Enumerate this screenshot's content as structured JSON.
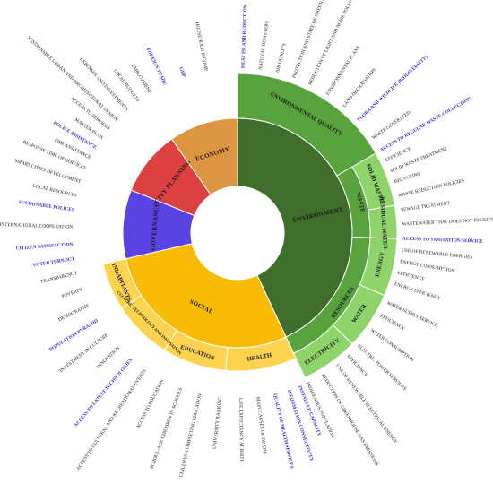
{
  "colors": {
    "environment_core": "#3f6d2c",
    "environment_mid": "#58a33d",
    "environment_outer": "#8fd46a",
    "social_core": "#f8bc06",
    "social_outer": "#fdd34f",
    "governance": "#5a42e3",
    "city_planning": "#dd4040",
    "economy": "#dc9540",
    "stroke": "#ffffff",
    "highlight_text": "#3d2bc9",
    "text": "#222222"
  },
  "rings": [
    {
      "id": "environment",
      "label": "ENVIRONMENT",
      "start": 0,
      "end": 155,
      "color": "#3f6d2c"
    },
    {
      "id": "social",
      "label": "SOCIAL",
      "start": 155,
      "end": 257,
      "color": "#f8bc06"
    },
    {
      "id": "governance",
      "label": "GOVERNANCE",
      "start": 257,
      "end": 292,
      "color": "#5a42e3"
    },
    {
      "id": "city_planning",
      "label": "CITY PLANNING",
      "start": 292,
      "end": 325,
      "color": "#dd4040"
    },
    {
      "id": "economy",
      "label": "ECONOMY",
      "start": 325,
      "end": 360,
      "color": "#dc9540"
    }
  ],
  "categories": [
    {
      "id": "environmental_quality",
      "label": "ENVIRONMENTAL QUALITY",
      "parent": "environment",
      "start": 0,
      "end": 60,
      "ring": "mid",
      "color": "#58a33d"
    },
    {
      "id": "waste",
      "label": "WASTE",
      "parent": "environment",
      "start": 60,
      "end": 92,
      "ring": "mid",
      "color": "#58a33d"
    },
    {
      "id": "resources",
      "label": "RESOURCES",
      "parent": "environment",
      "start": 92,
      "end": 155,
      "ring": "mid",
      "color": "#58a33d"
    },
    {
      "id": "solid_waste",
      "label": "SOLID WASTE",
      "parent": "waste",
      "start": 60,
      "end": 80,
      "ring": "outer",
      "color": "#8fd46a"
    },
    {
      "id": "residual_water",
      "label": "RESIDUAL WATER",
      "parent": "waste",
      "start": 80,
      "end": 92,
      "ring": "outer",
      "color": "#8fd46a"
    },
    {
      "id": "energy",
      "label": "ENERGY",
      "parent": "resources",
      "start": 92,
      "end": 113,
      "ring": "outer",
      "color": "#8fd46a"
    },
    {
      "id": "water",
      "label": "WATER",
      "parent": "resources",
      "start": 113,
      "end": 134,
      "ring": "outer",
      "color": "#8fd46a"
    },
    {
      "id": "electricity",
      "label": "ELECTRICITY",
      "parent": "resources",
      "start": 134,
      "end": 155,
      "ring": "outer",
      "color": "#8fd46a"
    },
    {
      "id": "health",
      "label": "HEALTH",
      "parent": "social",
      "start": 155,
      "end": 185,
      "ring": "mid",
      "color": "#fdd34f"
    },
    {
      "id": "education",
      "label": "EDUCATION",
      "parent": "social",
      "start": 185,
      "end": 212,
      "ring": "mid",
      "color": "#fdd34f"
    },
    {
      "id": "culture",
      "label": "CULTURE, TECHNOLOGY AND INNOVATION",
      "parent": "social",
      "start": 212,
      "end": 237,
      "ring": "mid",
      "color": "#fdd34f"
    },
    {
      "id": "inhabitants",
      "label": "INHABITANTS",
      "parent": "social",
      "start": 237,
      "end": 257,
      "ring": "mid",
      "color": "#fdd34f"
    }
  ],
  "leaves": [
    {
      "text": "HEAT ISLAND REDUCTION",
      "angle": 2,
      "highlight": true
    },
    {
      "text": "NATURAL DISASTERS",
      "angle": 8,
      "highlight": false
    },
    {
      "text": "AIR QUALITY",
      "angle": 14,
      "highlight": false
    },
    {
      "text": "PROTECTION AND STATE OF GREEN AREAS",
      "angle": 20,
      "highlight": false
    },
    {
      "text": "REDUCTION OF LIGHT AND NOISE POLLUTION",
      "angle": 26,
      "highlight": false
    },
    {
      "text": "ENVIRONMENTAL PLANS",
      "angle": 33,
      "highlight": false
    },
    {
      "text": "LAND DEGRADATION",
      "angle": 40,
      "highlight": false
    },
    {
      "text": "FLORA AND WILDLIFE (BIODIVERSITY)",
      "angle": 47,
      "highlight": true
    },
    {
      "text": "WASTE GENERATED",
      "angle": 55,
      "highlight": false
    },
    {
      "text": "ACCESS TO REGULAR WASTE COLLECTION",
      "angle": 60,
      "highlight": true
    },
    {
      "text": "EFFICIENCY",
      "angle": 64,
      "highlight": false
    },
    {
      "text": "SOLID WASTE TREATMENT",
      "angle": 68,
      "highlight": false
    },
    {
      "text": "RECYCLING",
      "angle": 72,
      "highlight": false
    },
    {
      "text": "WASTE REDUCTION POLICIES",
      "angle": 77,
      "highlight": false
    },
    {
      "text": "SEWAGE TREATMENT",
      "angle": 82,
      "highlight": false
    },
    {
      "text": "WASTEWATER THAT DOES NOT RECEIVE TREATMENT",
      "angle": 87,
      "highlight": false
    },
    {
      "text": "ACCESS TO SANITATION SERVICE",
      "angle": 92,
      "highlight": true
    },
    {
      "text": "USE OF RENEWABLE ENERGIES",
      "angle": 96,
      "highlight": false
    },
    {
      "text": "ENERGY CONSUMPTION",
      "angle": 100,
      "highlight": false
    },
    {
      "text": "EFFICIENCY",
      "angle": 104,
      "highlight": false
    },
    {
      "text": "ENERGY EFFICIENCY",
      "angle": 108,
      "highlight": false
    },
    {
      "text": "WATER SUPPLY SERVICE",
      "angle": 115,
      "highlight": false
    },
    {
      "text": "EFFICIENCY",
      "angle": 120,
      "highlight": false
    },
    {
      "text": "WATER CONSUMPTION",
      "angle": 126,
      "highlight": false
    },
    {
      "text": "ELECTRIC POWER SERVICES",
      "angle": 133,
      "highlight": false
    },
    {
      "text": "EFFICIENCY",
      "angle": 138,
      "highlight": false
    },
    {
      "text": "USE OF RENEWABLE ELECTRICAL ENERGY",
      "angle": 143,
      "highlight": false
    },
    {
      "text": "REDUCTION OF GREENHOUSE GAS EMISSIONS",
      "angle": 149,
      "highlight": false
    },
    {
      "text": "INDIGENOUS POPULATION",
      "angle": 155,
      "highlight": false
    },
    {
      "text": "INSTALLED CAPACITY",
      "angle": 158,
      "highlight": true
    },
    {
      "text": "INFORMATION CONNECTIVITY",
      "angle": 162,
      "highlight": true
    },
    {
      "text": "QUALITY OF HEALTH SERVICES",
      "angle": 167,
      "highlight": true
    },
    {
      "text": "MAIN CAUSES OF DEATH",
      "angle": 173,
      "highlight": false
    },
    {
      "text": "LIFE EXPECTANCY AT BIRTH",
      "angle": 179,
      "highlight": false
    },
    {
      "text": "UNIVERSITY RANKING",
      "angle": 186,
      "highlight": false
    },
    {
      "text": "CHILDREN COMPLETING EDUCATION",
      "angle": 193,
      "highlight": false
    },
    {
      "text": "SCHOOL-AGE CHILDREN IN SCHOOLS",
      "angle": 200,
      "highlight": false
    },
    {
      "text": "ACCESS TO EDUCATION",
      "angle": 207,
      "highlight": false
    },
    {
      "text": "ACCESS TO CULTURAL AND RECREATIONAL EVENTS",
      "angle": 214,
      "highlight": false
    },
    {
      "text": "ACCESS TO LATEST TECHNOLOGIES",
      "angle": 220,
      "highlight": true
    },
    {
      "text": "INNOVATION",
      "angle": 226,
      "highlight": false
    },
    {
      "text": "INVESTMENT IN CULTURE",
      "angle": 232,
      "highlight": false
    },
    {
      "text": "POPULATION PYRAMID",
      "angle": 238,
      "highlight": true
    },
    {
      "text": "DEMOGRAPHY",
      "angle": 244,
      "highlight": false
    },
    {
      "text": "POVERTY",
      "angle": 250,
      "highlight": false
    },
    {
      "text": "TRANSPARENCY",
      "angle": 256,
      "highlight": false
    },
    {
      "text": "VOTER TURNOUT",
      "angle": 261,
      "highlight": true
    },
    {
      "text": "CITIZEN SATISFACTION",
      "angle": 266,
      "highlight": true
    },
    {
      "text": "INTERNATIONAL COOPERATION",
      "angle": 272,
      "highlight": false
    },
    {
      "text": "SUSTAINABLE POLICES",
      "angle": 278,
      "highlight": true
    },
    {
      "text": "LOCAL RESOURCES",
      "angle": 283,
      "highlight": false
    },
    {
      "text": "SMART CITIES DEVELOPMENT",
      "angle": 288,
      "highlight": false
    },
    {
      "text": "RESPONSE TIME OF SERVICES",
      "angle": 293,
      "highlight": false
    },
    {
      "text": "FIRE ASSISTANCE",
      "angle": 297,
      "highlight": false
    },
    {
      "text": "POLICE ASSISTANCE",
      "angle": 301,
      "highlight": true
    },
    {
      "text": "MASTER PLAN",
      "angle": 305,
      "highlight": false
    },
    {
      "text": "ACCESS TO SERVICES",
      "angle": 309,
      "highlight": false
    },
    {
      "text": "SUSTAINABLE URBAN AND ARCHITECTURAL DESIGN",
      "angle": 313,
      "highlight": false
    },
    {
      "text": "EXPENSES AND INVESTMENTS",
      "angle": 318,
      "highlight": false
    },
    {
      "text": "LOCAL BUDGETS",
      "angle": 323,
      "highlight": false
    },
    {
      "text": "EMPLOYMENT",
      "angle": 328,
      "highlight": false
    },
    {
      "text": "FOREIGN TRADE",
      "angle": 334,
      "highlight": true
    },
    {
      "text": "GDP",
      "angle": 341,
      "highlight": true
    },
    {
      "text": "HOUSEHOLD INCOME",
      "angle": 349,
      "highlight": false
    }
  ]
}
